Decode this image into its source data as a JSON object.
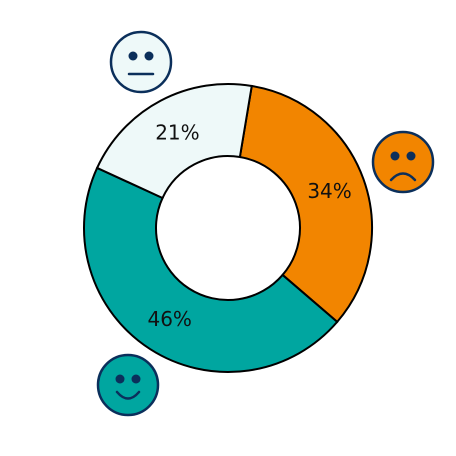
{
  "chart_data": {
    "type": "pie",
    "variant": "donut",
    "slices": [
      {
        "value": 34,
        "label": "34%",
        "color": "#f28500",
        "icon": "sad-face-icon"
      },
      {
        "value": 46,
        "label": "46%",
        "color": "#00a6a0",
        "icon": "happy-face-icon"
      },
      {
        "value": 21,
        "label": "21%",
        "color": "#eef9f9",
        "icon": "neutral-face-icon"
      }
    ],
    "legend": "none"
  },
  "colors": {
    "outline": "#000000",
    "icon_stroke": "#0b2f5b"
  }
}
